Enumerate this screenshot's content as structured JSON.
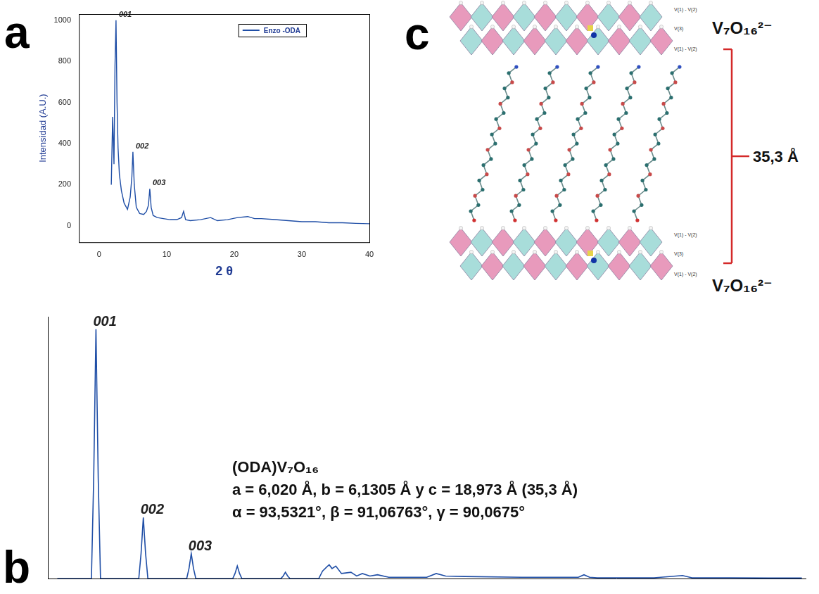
{
  "chart_data": [
    {
      "panel": "a",
      "type": "line",
      "x_label": "2 θ",
      "y_label": "Intensidad (A.U.)",
      "xlim": [
        -3,
        40
      ],
      "xticks": [
        0,
        10,
        20,
        30,
        40
      ],
      "ylim": [
        -80,
        1030
      ],
      "yticks": [
        0,
        200,
        400,
        600,
        800,
        1000
      ],
      "grid": false,
      "legend": "upper right",
      "series": [
        {
          "name": "Enzo -ODA",
          "color": "#1f4ea6",
          "x": [
            1.8,
            2.0,
            2.2,
            2.35,
            2.5,
            2.65,
            2.8,
            3.0,
            3.3,
            3.7,
            4.2,
            4.6,
            4.85,
            5.0,
            5.2,
            5.5,
            6.0,
            6.6,
            7.0,
            7.3,
            7.5,
            7.7,
            8.0,
            8.6,
            9.5,
            10.5,
            11.5,
            12.2,
            12.5,
            12.8,
            13.5,
            15,
            16.5,
            17.5,
            19,
            20.5,
            22,
            23,
            24,
            26,
            28,
            30,
            32,
            34,
            36,
            38,
            40
          ],
          "values": [
            200,
            530,
            300,
            780,
            1000,
            600,
            380,
            250,
            170,
            110,
            80,
            140,
            240,
            360,
            200,
            90,
            60,
            55,
            70,
            100,
            180,
            90,
            50,
            40,
            35,
            30,
            30,
            40,
            70,
            30,
            25,
            30,
            40,
            25,
            30,
            40,
            45,
            35,
            35,
            30,
            25,
            20,
            20,
            15,
            15,
            12,
            10
          ]
        }
      ],
      "annotations": [
        {
          "text": "001",
          "x": 2.5,
          "y": 1000
        },
        {
          "text": "002",
          "x": 5.0,
          "y": 360
        },
        {
          "text": "003",
          "x": 7.5,
          "y": 180
        }
      ]
    },
    {
      "panel": "b",
      "type": "line",
      "xlim": [
        0,
        40
      ],
      "ylim": [
        0,
        1050
      ],
      "grid": false,
      "tick_labels": false,
      "series": [
        {
          "color": "#1f4ea6",
          "x": [
            0.5,
            2.3,
            2.42,
            2.54,
            2.66,
            2.78,
            4.8,
            4.92,
            5.04,
            5.16,
            5.28,
            7.33,
            7.45,
            7.57,
            7.69,
            7.81,
            9.76,
            9.88,
            10.0,
            10.12,
            10.24,
            12.3,
            12.42,
            12.54,
            12.66,
            12.78,
            14.3,
            14.5,
            14.7,
            14.85,
            15.0,
            15.2,
            15.5,
            16.0,
            16.3,
            16.6,
            17.0,
            17.4,
            18.0,
            20.0,
            20.5,
            21.0,
            22.0,
            25.0,
            28.0,
            28.3,
            28.6,
            29.0,
            32,
            33.5,
            34,
            36,
            38,
            39.8
          ],
          "values": [
            0,
            0,
            400,
            1000,
            400,
            0,
            0,
            100,
            245,
            100,
            0,
            0,
            40,
            100,
            40,
            0,
            0,
            20,
            50,
            20,
            0,
            0,
            10,
            25,
            10,
            0,
            0,
            30,
            45,
            55,
            40,
            50,
            20,
            25,
            10,
            20,
            10,
            15,
            5,
            5,
            20,
            10,
            8,
            5,
            5,
            15,
            5,
            3,
            3,
            12,
            3,
            3,
            2,
            2
          ]
        }
      ],
      "annotations": [
        {
          "text": "001",
          "x": 2.54,
          "y": 1000
        },
        {
          "text": "002",
          "x": 5.04,
          "y": 245
        },
        {
          "text": "003",
          "x": 7.57,
          "y": 100
        }
      ],
      "text": [
        "(ODA)V₇O₁₆",
        "a = 6,020 Å, b = 6,1305 Å y c = 18,973 Å (35,3 Å)",
        "α = 93,5321°, β = 91,06763°, γ = 90,0675°"
      ]
    }
  ],
  "diagram": {
    "panel": "c",
    "layers": [
      {
        "label": "V₇O₁₆²⁻",
        "sublabels": [
          "V(1) - V(2)",
          "V(3)",
          "V(1) - V(2)"
        ]
      },
      {
        "label": "V₇O₁₆²⁻",
        "sublabels": [
          "V(1) - V(2)",
          "V(3)",
          "V(1) - V(2)"
        ]
      }
    ],
    "spacing": "35,3 Å"
  }
}
